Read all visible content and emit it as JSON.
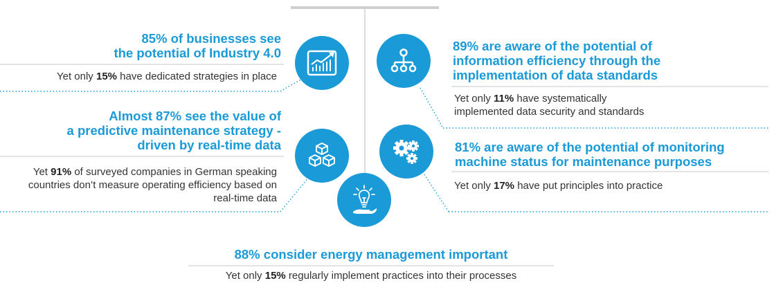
{
  "blocks": [
    {
      "id": "industry",
      "heading_lines": [
        "85% of businesses see",
        "the potential of Industry 4.0"
      ],
      "sub_prefix": "Yet only ",
      "sub_bold": "15%",
      "sub_suffix": " have dedicated strategies in place",
      "icon": "chart-growth-icon"
    },
    {
      "id": "data-standards",
      "heading_lines": [
        "89% are aware of the potential of",
        "information efficiency through the",
        "implementation of data standards"
      ],
      "sub_prefix": "Yet only ",
      "sub_bold": "11%",
      "sub_suffix": " have systematically implemented data security and standards",
      "icon": "hierarchy-icon"
    },
    {
      "id": "predictive",
      "heading_lines": [
        "Almost 87% see the value of",
        "a predictive maintenance strategy -",
        "driven by real-time data"
      ],
      "sub_prefix": "Yet ",
      "sub_bold": "91%",
      "sub_suffix": " of surveyed companies in German speaking countries don’t measure operating efficiency based on real-time data",
      "icon": "cubes-icon"
    },
    {
      "id": "monitoring",
      "heading_lines": [
        "81% are aware of the potential of monitoring",
        "machine status for maintenance purposes"
      ],
      "sub_prefix": "Yet only ",
      "sub_bold": "17%",
      "sub_suffix": " have put principles into practice",
      "icon": "gears-icon"
    },
    {
      "id": "energy",
      "heading_lines": [
        "88% consider energy management important"
      ],
      "sub_prefix": "Yet only ",
      "sub_bold": "15%",
      "sub_suffix": " regularly implement practices into their processes",
      "icon": "lightbulb-hand-icon"
    }
  ],
  "colors": {
    "accent": "#1a9ad6",
    "text": "#333333",
    "rule": "#c8c8c8"
  }
}
